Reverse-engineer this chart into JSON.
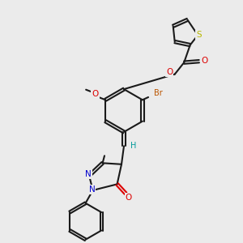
{
  "bg_color": "#ebebeb",
  "bond_color": "#1a1a1a",
  "atom_colors": {
    "S": "#b8b800",
    "O": "#dd0000",
    "N": "#0000cc",
    "Br": "#bb5500",
    "H": "#009999",
    "C": "#1a1a1a"
  },
  "lw": 1.5,
  "dbo": 0.055,
  "fs": 7.0,
  "xlim": [
    0,
    10
  ],
  "ylim": [
    0,
    10
  ]
}
